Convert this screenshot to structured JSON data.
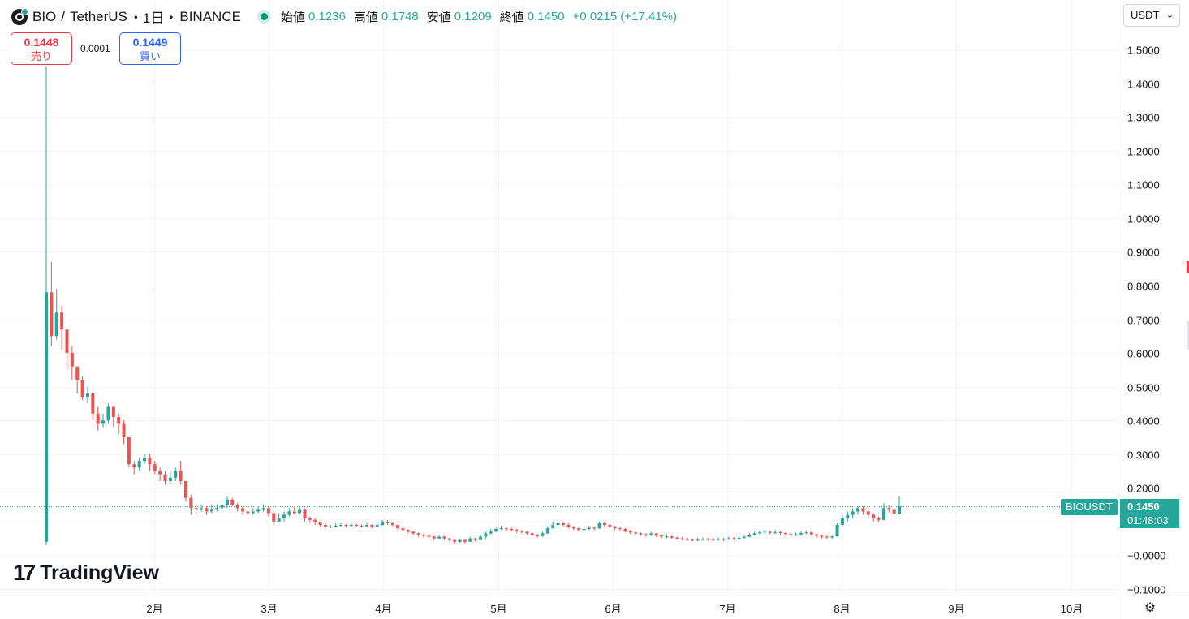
{
  "header": {
    "symbol": "BIO",
    "separator": "/",
    "quote": "TetherUS",
    "interval": "・1日・",
    "exchange": "BINANCE",
    "open_label": "始値",
    "open": "0.1236",
    "high_label": "高値",
    "high": "0.1748",
    "low_label": "安値",
    "low": "0.1209",
    "close_label": "終値",
    "close": "0.1450",
    "change": "+0.0215 (+17.41%)"
  },
  "trade": {
    "sell_price": "0.1448",
    "sell_label": "売り",
    "spread": "0.0001",
    "buy_price": "0.1449",
    "buy_label": "買い"
  },
  "currency_select": {
    "value": "USDT"
  },
  "branding": {
    "logo_mark": "17",
    "logo_text": "TradingView"
  },
  "last_price_tag": {
    "symbol": "BIOUSDT",
    "price": "0.1450",
    "countdown": "01:48:03"
  },
  "icons": {
    "settings": "settings-gear-icon",
    "dropdown": "chevron-down-icon"
  },
  "colors": {
    "up": "#26a69a",
    "down": "#ef5350",
    "sell": "#f23645",
    "buy": "#2962ff"
  },
  "chart_data": {
    "type": "candlestick",
    "y_ticks": [
      "1.5000",
      "1.4000",
      "1.3000",
      "1.2000",
      "1.1000",
      "1.0000",
      "0.9000",
      "0.8000",
      "0.7000",
      "0.6000",
      "0.5000",
      "0.4000",
      "0.3000",
      "0.2000",
      "0.1000",
      "−0.0000",
      "−0.1000"
    ],
    "x_ticks": [
      "2月",
      "3月",
      "4月",
      "5月",
      "6月",
      "7月",
      "8月",
      "9月",
      "10月"
    ],
    "ylim": [
      -0.1,
      1.5
    ],
    "grid": true,
    "last_price": 0.145,
    "series": [
      {
        "close": 0.78,
        "high": 1.45,
        "low": 0.03
      },
      {
        "close": 0.65,
        "high": 0.87,
        "low": 0.62
      },
      {
        "close": 0.72,
        "high": 0.79,
        "low": 0.64
      },
      {
        "close": 0.67,
        "high": 0.74,
        "low": 0.61
      },
      {
        "close": 0.6,
        "high": 0.64,
        "low": 0.55
      },
      {
        "close": 0.56,
        "high": 0.62,
        "low": 0.52
      },
      {
        "close": 0.52,
        "high": 0.56,
        "low": 0.48
      },
      {
        "close": 0.47,
        "high": 0.53,
        "low": 0.46
      },
      {
        "close": 0.48,
        "high": 0.5,
        "low": 0.45
      },
      {
        "close": 0.42,
        "high": 0.48,
        "low": 0.4
      },
      {
        "close": 0.39,
        "high": 0.44,
        "low": 0.37
      },
      {
        "close": 0.4,
        "high": 0.42,
        "low": 0.38
      },
      {
        "close": 0.44,
        "high": 0.45,
        "low": 0.39
      },
      {
        "close": 0.41,
        "high": 0.44,
        "low": 0.38
      },
      {
        "close": 0.39,
        "high": 0.42,
        "low": 0.36
      },
      {
        "close": 0.35,
        "high": 0.4,
        "low": 0.33
      },
      {
        "close": 0.27,
        "high": 0.35,
        "low": 0.26
      },
      {
        "close": 0.26,
        "high": 0.28,
        "low": 0.24
      },
      {
        "close": 0.28,
        "high": 0.29,
        "low": 0.25
      },
      {
        "close": 0.29,
        "high": 0.3,
        "low": 0.27
      },
      {
        "close": 0.27,
        "high": 0.3,
        "low": 0.25
      },
      {
        "close": 0.25,
        "high": 0.28,
        "low": 0.24
      },
      {
        "close": 0.24,
        "high": 0.26,
        "low": 0.22
      },
      {
        "close": 0.22,
        "high": 0.25,
        "low": 0.21
      },
      {
        "close": 0.23,
        "high": 0.25,
        "low": 0.21
      },
      {
        "close": 0.25,
        "high": 0.26,
        "low": 0.22
      },
      {
        "close": 0.22,
        "high": 0.28,
        "low": 0.21
      },
      {
        "close": 0.17,
        "high": 0.22,
        "low": 0.16
      },
      {
        "close": 0.14,
        "high": 0.18,
        "low": 0.12
      },
      {
        "close": 0.135,
        "high": 0.15,
        "low": 0.12
      },
      {
        "close": 0.14,
        "high": 0.15,
        "low": 0.13
      },
      {
        "close": 0.13,
        "high": 0.145,
        "low": 0.12
      },
      {
        "close": 0.135,
        "high": 0.15,
        "low": 0.125
      },
      {
        "close": 0.14,
        "high": 0.15,
        "low": 0.13
      },
      {
        "close": 0.15,
        "high": 0.16,
        "low": 0.13
      },
      {
        "close": 0.165,
        "high": 0.175,
        "low": 0.14
      },
      {
        "close": 0.15,
        "high": 0.17,
        "low": 0.145
      },
      {
        "close": 0.14,
        "high": 0.155,
        "low": 0.13
      },
      {
        "close": 0.13,
        "high": 0.145,
        "low": 0.12
      },
      {
        "close": 0.125,
        "high": 0.135,
        "low": 0.115
      },
      {
        "close": 0.13,
        "high": 0.14,
        "low": 0.12
      },
      {
        "close": 0.135,
        "high": 0.145,
        "low": 0.125
      },
      {
        "close": 0.14,
        "high": 0.15,
        "low": 0.13
      },
      {
        "close": 0.125,
        "high": 0.145,
        "low": 0.115
      },
      {
        "close": 0.1,
        "high": 0.13,
        "low": 0.09
      },
      {
        "close": 0.11,
        "high": 0.125,
        "low": 0.1
      },
      {
        "close": 0.12,
        "high": 0.13,
        "low": 0.1
      },
      {
        "close": 0.13,
        "high": 0.14,
        "low": 0.115
      },
      {
        "close": 0.125,
        "high": 0.145,
        "low": 0.12
      },
      {
        "close": 0.135,
        "high": 0.145,
        "low": 0.12
      },
      {
        "close": 0.11,
        "high": 0.14,
        "low": 0.1
      },
      {
        "close": 0.105,
        "high": 0.115,
        "low": 0.095
      },
      {
        "close": 0.1,
        "high": 0.11,
        "low": 0.09
      },
      {
        "close": 0.09,
        "high": 0.1,
        "low": 0.085
      },
      {
        "close": 0.085,
        "high": 0.095,
        "low": 0.08
      },
      {
        "close": 0.085,
        "high": 0.09,
        "low": 0.08
      },
      {
        "close": 0.088,
        "high": 0.095,
        "low": 0.082
      },
      {
        "close": 0.09,
        "high": 0.095,
        "low": 0.085
      },
      {
        "close": 0.087,
        "high": 0.093,
        "low": 0.083
      },
      {
        "close": 0.09,
        "high": 0.095,
        "low": 0.085
      },
      {
        "close": 0.088,
        "high": 0.094,
        "low": 0.084
      },
      {
        "close": 0.086,
        "high": 0.092,
        "low": 0.082
      },
      {
        "close": 0.09,
        "high": 0.095,
        "low": 0.085
      },
      {
        "close": 0.085,
        "high": 0.092,
        "low": 0.08
      },
      {
        "close": 0.09,
        "high": 0.096,
        "low": 0.082
      },
      {
        "close": 0.1,
        "high": 0.105,
        "low": 0.088
      },
      {
        "close": 0.095,
        "high": 0.105,
        "low": 0.09
      },
      {
        "close": 0.09,
        "high": 0.097,
        "low": 0.085
      },
      {
        "close": 0.08,
        "high": 0.09,
        "low": 0.075
      },
      {
        "close": 0.075,
        "high": 0.085,
        "low": 0.07
      },
      {
        "close": 0.07,
        "high": 0.078,
        "low": 0.065
      },
      {
        "close": 0.065,
        "high": 0.072,
        "low": 0.06
      },
      {
        "close": 0.06,
        "high": 0.068,
        "low": 0.055
      },
      {
        "close": 0.058,
        "high": 0.064,
        "low": 0.052
      },
      {
        "close": 0.055,
        "high": 0.062,
        "low": 0.05
      },
      {
        "close": 0.05,
        "high": 0.058,
        "low": 0.045
      },
      {
        "close": 0.055,
        "high": 0.06,
        "low": 0.048
      },
      {
        "close": 0.05,
        "high": 0.058,
        "low": 0.045
      },
      {
        "close": 0.045,
        "high": 0.052,
        "low": 0.04
      },
      {
        "close": 0.04,
        "high": 0.048,
        "low": 0.035
      },
      {
        "close": 0.045,
        "high": 0.05,
        "low": 0.037
      },
      {
        "close": 0.04,
        "high": 0.047,
        "low": 0.035
      },
      {
        "close": 0.05,
        "high": 0.055,
        "low": 0.04
      },
      {
        "close": 0.045,
        "high": 0.052,
        "low": 0.04
      },
      {
        "close": 0.055,
        "high": 0.06,
        "low": 0.045
      },
      {
        "close": 0.065,
        "high": 0.07,
        "low": 0.05
      },
      {
        "close": 0.07,
        "high": 0.078,
        "low": 0.062
      },
      {
        "close": 0.078,
        "high": 0.082,
        "low": 0.068
      },
      {
        "close": 0.08,
        "high": 0.088,
        "low": 0.075
      },
      {
        "close": 0.078,
        "high": 0.085,
        "low": 0.072
      },
      {
        "close": 0.075,
        "high": 0.082,
        "low": 0.07
      },
      {
        "close": 0.072,
        "high": 0.078,
        "low": 0.066
      },
      {
        "close": 0.07,
        "high": 0.075,
        "low": 0.064
      },
      {
        "close": 0.065,
        "high": 0.072,
        "low": 0.06
      },
      {
        "close": 0.06,
        "high": 0.068,
        "low": 0.055
      },
      {
        "close": 0.057,
        "high": 0.063,
        "low": 0.052
      },
      {
        "close": 0.065,
        "high": 0.07,
        "low": 0.055
      },
      {
        "close": 0.08,
        "high": 0.086,
        "low": 0.063
      },
      {
        "close": 0.09,
        "high": 0.1,
        "low": 0.08
      },
      {
        "close": 0.095,
        "high": 0.1,
        "low": 0.085
      },
      {
        "close": 0.09,
        "high": 0.1,
        "low": 0.085
      },
      {
        "close": 0.085,
        "high": 0.095,
        "low": 0.08
      },
      {
        "close": 0.08,
        "high": 0.087,
        "low": 0.075
      },
      {
        "close": 0.075,
        "high": 0.082,
        "low": 0.07
      },
      {
        "close": 0.078,
        "high": 0.085,
        "low": 0.072
      },
      {
        "close": 0.082,
        "high": 0.088,
        "low": 0.075
      },
      {
        "close": 0.08,
        "high": 0.086,
        "low": 0.074
      },
      {
        "close": 0.095,
        "high": 0.1,
        "low": 0.078
      },
      {
        "close": 0.09,
        "high": 0.098,
        "low": 0.085
      },
      {
        "close": 0.085,
        "high": 0.095,
        "low": 0.08
      },
      {
        "close": 0.08,
        "high": 0.088,
        "low": 0.075
      },
      {
        "close": 0.078,
        "high": 0.085,
        "low": 0.072
      },
      {
        "close": 0.072,
        "high": 0.08,
        "low": 0.068
      },
      {
        "close": 0.068,
        "high": 0.075,
        "low": 0.062
      },
      {
        "close": 0.065,
        "high": 0.07,
        "low": 0.06
      },
      {
        "close": 0.062,
        "high": 0.068,
        "low": 0.058
      },
      {
        "close": 0.06,
        "high": 0.066,
        "low": 0.055
      },
      {
        "close": 0.065,
        "high": 0.07,
        "low": 0.057
      },
      {
        "close": 0.058,
        "high": 0.066,
        "low": 0.054
      },
      {
        "close": 0.055,
        "high": 0.062,
        "low": 0.05
      },
      {
        "close": 0.056,
        "high": 0.062,
        "low": 0.05
      },
      {
        "close": 0.052,
        "high": 0.058,
        "low": 0.048
      },
      {
        "close": 0.05,
        "high": 0.056,
        "low": 0.046
      },
      {
        "close": 0.048,
        "high": 0.054,
        "low": 0.044
      },
      {
        "close": 0.046,
        "high": 0.052,
        "low": 0.042
      },
      {
        "close": 0.045,
        "high": 0.05,
        "low": 0.041
      },
      {
        "close": 0.046,
        "high": 0.051,
        "low": 0.042
      },
      {
        "close": 0.048,
        "high": 0.053,
        "low": 0.043
      },
      {
        "close": 0.047,
        "high": 0.052,
        "low": 0.043
      },
      {
        "close": 0.046,
        "high": 0.051,
        "low": 0.042
      },
      {
        "close": 0.048,
        "high": 0.053,
        "low": 0.043
      },
      {
        "close": 0.047,
        "high": 0.052,
        "low": 0.042
      },
      {
        "close": 0.05,
        "high": 0.055,
        "low": 0.044
      },
      {
        "close": 0.048,
        "high": 0.054,
        "low": 0.044
      },
      {
        "close": 0.052,
        "high": 0.057,
        "low": 0.046
      },
      {
        "close": 0.055,
        "high": 0.06,
        "low": 0.049
      },
      {
        "close": 0.06,
        "high": 0.066,
        "low": 0.054
      },
      {
        "close": 0.065,
        "high": 0.07,
        "low": 0.058
      },
      {
        "close": 0.068,
        "high": 0.074,
        "low": 0.062
      },
      {
        "close": 0.07,
        "high": 0.076,
        "low": 0.064
      },
      {
        "close": 0.067,
        "high": 0.073,
        "low": 0.062
      },
      {
        "close": 0.069,
        "high": 0.075,
        "low": 0.063
      },
      {
        "close": 0.066,
        "high": 0.072,
        "low": 0.061
      },
      {
        "close": 0.063,
        "high": 0.069,
        "low": 0.058
      },
      {
        "close": 0.06,
        "high": 0.066,
        "low": 0.055
      },
      {
        "close": 0.062,
        "high": 0.068,
        "low": 0.056
      },
      {
        "close": 0.066,
        "high": 0.072,
        "low": 0.058
      },
      {
        "close": 0.068,
        "high": 0.074,
        "low": 0.062
      },
      {
        "close": 0.062,
        "high": 0.07,
        "low": 0.058
      },
      {
        "close": 0.058,
        "high": 0.064,
        "low": 0.052
      },
      {
        "close": 0.055,
        "high": 0.06,
        "low": 0.05
      },
      {
        "close": 0.053,
        "high": 0.058,
        "low": 0.048
      },
      {
        "close": 0.056,
        "high": 0.06,
        "low": 0.049
      },
      {
        "close": 0.09,
        "high": 0.095,
        "low": 0.055
      },
      {
        "close": 0.11,
        "high": 0.12,
        "low": 0.085
      },
      {
        "close": 0.12,
        "high": 0.13,
        "low": 0.1
      },
      {
        "close": 0.13,
        "high": 0.14,
        "low": 0.11
      },
      {
        "close": 0.14,
        "high": 0.145,
        "low": 0.12
      },
      {
        "close": 0.13,
        "high": 0.145,
        "low": 0.12
      },
      {
        "close": 0.12,
        "high": 0.135,
        "low": 0.11
      },
      {
        "close": 0.11,
        "high": 0.125,
        "low": 0.1
      },
      {
        "close": 0.105,
        "high": 0.115,
        "low": 0.1
      },
      {
        "close": 0.14,
        "high": 0.155,
        "low": 0.103
      },
      {
        "close": 0.135,
        "high": 0.148,
        "low": 0.128
      },
      {
        "close": 0.1236,
        "high": 0.142,
        "low": 0.12
      },
      {
        "close": 0.145,
        "high": 0.1748,
        "low": 0.1209
      }
    ]
  }
}
